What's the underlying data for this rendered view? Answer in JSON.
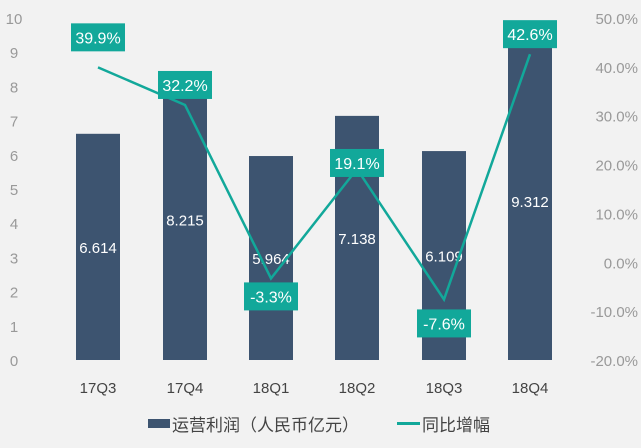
{
  "chart_data": {
    "type": "bar+line",
    "categories": [
      "17Q3",
      "17Q4",
      "18Q1",
      "18Q2",
      "18Q3",
      "18Q4"
    ],
    "series": [
      {
        "name": "运营利润（人民币亿元）",
        "type": "bar",
        "axis": "left",
        "values": [
          6.614,
          8.215,
          5.964,
          7.138,
          6.109,
          9.312
        ],
        "labels": [
          "6.614",
          "8.215",
          "5.964",
          "7.138",
          "6.109",
          "9.312"
        ],
        "color": "#3d5470"
      },
      {
        "name": "同比增幅",
        "type": "line",
        "axis": "right",
        "values": [
          39.9,
          32.2,
          -3.3,
          19.1,
          -7.6,
          42.6
        ],
        "labels": [
          "39.9%",
          "32.2%",
          "-3.3%",
          "19.1%",
          "-7.6%",
          "42.6%"
        ],
        "color": "#12a89a"
      }
    ],
    "left_axis": {
      "range": [
        0,
        10
      ],
      "ticks": [
        "0",
        "1",
        "2",
        "3",
        "4",
        "5",
        "6",
        "7",
        "8",
        "9",
        "10"
      ]
    },
    "right_axis": {
      "range": [
        -20,
        50
      ],
      "ticks": [
        "-20.0%",
        "-10.0%",
        "0.0%",
        "10.0%",
        "20.0%",
        "30.0%",
        "40.0%",
        "50.0%"
      ]
    },
    "grid": false,
    "legend": "bottom"
  }
}
